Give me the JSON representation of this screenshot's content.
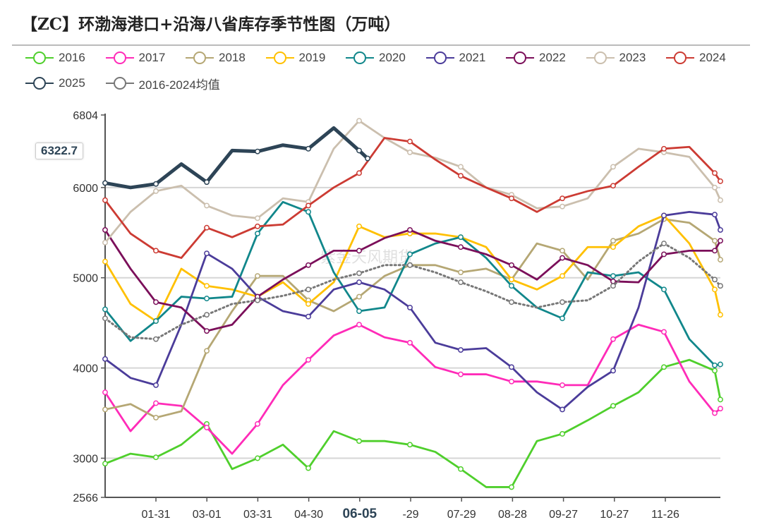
{
  "title": "【ZC】环渤海港口+沿海八省库存季节性图（万吨）",
  "watermark": "紫金天风期货",
  "tooltip_value": "6322.7",
  "chart_data": {
    "type": "line",
    "title": "【ZC】环渤海港口+沿海八省库存季节性图（万吨）",
    "ylim": [
      2566,
      6804
    ],
    "y_ticks": [
      "6804",
      "6000",
      "5000",
      "4000",
      "3000",
      "2566"
    ],
    "x_ticks": [
      "01-31",
      "03-01",
      "03-31",
      "04-30",
      "06-05",
      "-29",
      "07-29",
      "08-28",
      "09-27",
      "10-27",
      "11-26"
    ],
    "highlight_x_tick": "06-05",
    "grid": true,
    "legend": "top",
    "x": [
      "01-01",
      "01-16",
      "01-31",
      "02-15",
      "03-02",
      "03-17",
      "04-01",
      "04-16",
      "05-01",
      "05-16",
      "05-31",
      "06-15",
      "06-30",
      "07-15",
      "07-30",
      "08-14",
      "08-29",
      "09-13",
      "09-28",
      "10-13",
      "10-28",
      "11-12",
      "11-27",
      "12-12",
      "12-27",
      "12-31"
    ],
    "series": [
      {
        "name": "2016",
        "color": "#4fcf2c",
        "values": [
          2940,
          3050,
          3010,
          3150,
          3380,
          2880,
          3000,
          3150,
          2890,
          3300,
          3190,
          3190,
          3150,
          3070,
          2880,
          2680,
          2680,
          3190,
          3270,
          3420,
          3580,
          3730,
          4010,
          4090,
          3970,
          3650
        ]
      },
      {
        "name": "2017",
        "color": "#ff2bb8",
        "values": [
          3730,
          3300,
          3610,
          3580,
          3340,
          3050,
          3380,
          3810,
          4090,
          4360,
          4480,
          4340,
          4280,
          4010,
          3930,
          3930,
          3850,
          3850,
          3810,
          3810,
          4320,
          4480,
          4400,
          3850,
          3500,
          3550
        ]
      },
      {
        "name": "2018",
        "color": "#b5a774",
        "values": [
          3540,
          3600,
          3450,
          3520,
          4190,
          4630,
          5020,
          5020,
          4750,
          4630,
          4790,
          5020,
          5140,
          5140,
          5060,
          5100,
          4980,
          5380,
          5300,
          4980,
          5410,
          5490,
          5650,
          5610,
          5410,
          5200
        ]
      },
      {
        "name": "2019",
        "color": "#ffc000",
        "values": [
          5180,
          4710,
          4520,
          5100,
          4910,
          4870,
          4790,
          4950,
          4710,
          4950,
          5570,
          5450,
          5490,
          5490,
          5450,
          5340,
          4980,
          4870,
          5020,
          5340,
          5340,
          5570,
          5690,
          5380,
          4870,
          4590
        ]
      },
      {
        "name": "2020",
        "color": "#11878b",
        "values": [
          4650,
          4300,
          4520,
          4790,
          4770,
          4790,
          5490,
          5840,
          5730,
          5060,
          4630,
          4670,
          5260,
          5380,
          5450,
          5220,
          4910,
          4670,
          4550,
          5060,
          5020,
          5060,
          4870,
          4320,
          4030,
          4040
        ]
      },
      {
        "name": "2021",
        "color": "#4b3c9a",
        "values": [
          4100,
          3890,
          3810,
          4480,
          5270,
          5100,
          4790,
          4630,
          4570,
          4870,
          4950,
          4870,
          4670,
          4280,
          4200,
          4220,
          4010,
          3730,
          3540,
          3790,
          3970,
          4670,
          5690,
          5730,
          5700,
          5530
        ]
      },
      {
        "name": "2022",
        "color": "#7b0f5a",
        "values": [
          5530,
          5100,
          4730,
          4670,
          4410,
          4480,
          4790,
          4980,
          5140,
          5300,
          5300,
          5440,
          5530,
          5410,
          5340,
          5260,
          5140,
          4980,
          5220,
          5140,
          4960,
          4950,
          5260,
          5300,
          5300,
          5410
        ]
      },
      {
        "name": "2023",
        "color": "#cbbfae",
        "values": [
          5390,
          5730,
          5960,
          6020,
          5800,
          5690,
          5660,
          5880,
          5840,
          6430,
          6740,
          6550,
          6390,
          6330,
          6230,
          6000,
          5920,
          5770,
          5790,
          5880,
          6230,
          6430,
          6390,
          6340,
          6000,
          5860
        ]
      },
      {
        "name": "2024",
        "color": "#cc3b33",
        "values": [
          5860,
          5490,
          5300,
          5220,
          5555,
          5450,
          5570,
          5590,
          5800,
          6000,
          6160,
          6550,
          6510,
          6310,
          6130,
          6000,
          5880,
          5730,
          5880,
          5960,
          6020,
          6230,
          6430,
          6450,
          6160,
          6070
        ]
      },
      {
        "name": "2025",
        "color": "#2d4456",
        "x": [
          "01-01",
          "01-16",
          "01-31",
          "02-15",
          "03-02",
          "03-17",
          "04-01",
          "04-16",
          "05-01",
          "05-16",
          "05-31",
          "06-05"
        ],
        "values": [
          6050,
          6000,
          6040,
          6260,
          6060,
          6410,
          6400,
          6470,
          6430,
          6660,
          6410,
          6322.7
        ]
      },
      {
        "name": "2016-2024均值",
        "color": "#777777",
        "dashed": true,
        "values": [
          4550,
          4340,
          4320,
          4480,
          4590,
          4710,
          4750,
          4800,
          4870,
          4980,
          5050,
          5140,
          5140,
          5060,
          4950,
          4850,
          4730,
          4670,
          4730,
          4750,
          4910,
          5180,
          5380,
          5220,
          4980,
          4910
        ]
      }
    ]
  }
}
